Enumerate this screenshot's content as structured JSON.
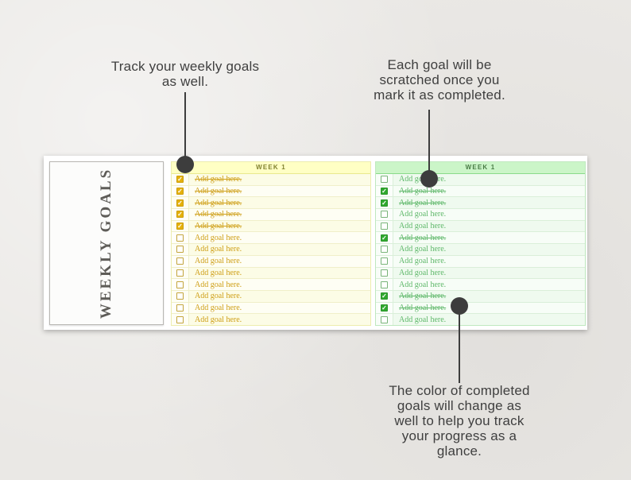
{
  "annotations": {
    "top_left": {
      "lines": [
        "Track your weekly goals",
        "as well."
      ]
    },
    "top_right": {
      "lines": [
        "Each goal will be",
        "scratched once you",
        "mark it as completed."
      ]
    },
    "bottom": {
      "lines": [
        "The color of completed",
        "goals will change as",
        "well to help you track",
        "your progress as a",
        "glance."
      ]
    }
  },
  "colors": {
    "callout_dot": "#3d3d3d",
    "yellow_accent": "#E5B10D",
    "green_accent": "#30A82F"
  },
  "panel": {
    "sidebar_title": "WEEKLY GOALS",
    "tables": [
      {
        "id": "yellow",
        "header": "WEEK 1",
        "rows": [
          {
            "checked": true,
            "text": "Add goal here."
          },
          {
            "checked": true,
            "text": "Add goal here."
          },
          {
            "checked": true,
            "text": "Add goal here."
          },
          {
            "checked": true,
            "text": "Add goal here."
          },
          {
            "checked": true,
            "text": "Add goal here."
          },
          {
            "checked": false,
            "text": "Add goal here."
          },
          {
            "checked": false,
            "text": "Add goal here."
          },
          {
            "checked": false,
            "text": "Add goal here."
          },
          {
            "checked": false,
            "text": "Add goal here."
          },
          {
            "checked": false,
            "text": "Add goal here."
          },
          {
            "checked": false,
            "text": "Add goal here."
          },
          {
            "checked": false,
            "text": "Add goal here."
          },
          {
            "checked": false,
            "text": "Add goal here."
          }
        ]
      },
      {
        "id": "green",
        "header": "WEEK 1",
        "rows": [
          {
            "checked": false,
            "text": "Add goal here."
          },
          {
            "checked": true,
            "text": "Add goal here."
          },
          {
            "checked": true,
            "text": "Add goal here."
          },
          {
            "checked": false,
            "text": "Add goal here."
          },
          {
            "checked": false,
            "text": "Add goal here."
          },
          {
            "checked": true,
            "text": "Add goal here."
          },
          {
            "checked": false,
            "text": "Add goal here."
          },
          {
            "checked": false,
            "text": "Add goal here."
          },
          {
            "checked": false,
            "text": "Add goal here."
          },
          {
            "checked": false,
            "text": "Add goal here."
          },
          {
            "checked": true,
            "text": "Add goal here."
          },
          {
            "checked": true,
            "text": "Add goal here."
          },
          {
            "checked": false,
            "text": "Add goal here."
          }
        ]
      }
    ]
  },
  "checkmark_glyph": "✓"
}
